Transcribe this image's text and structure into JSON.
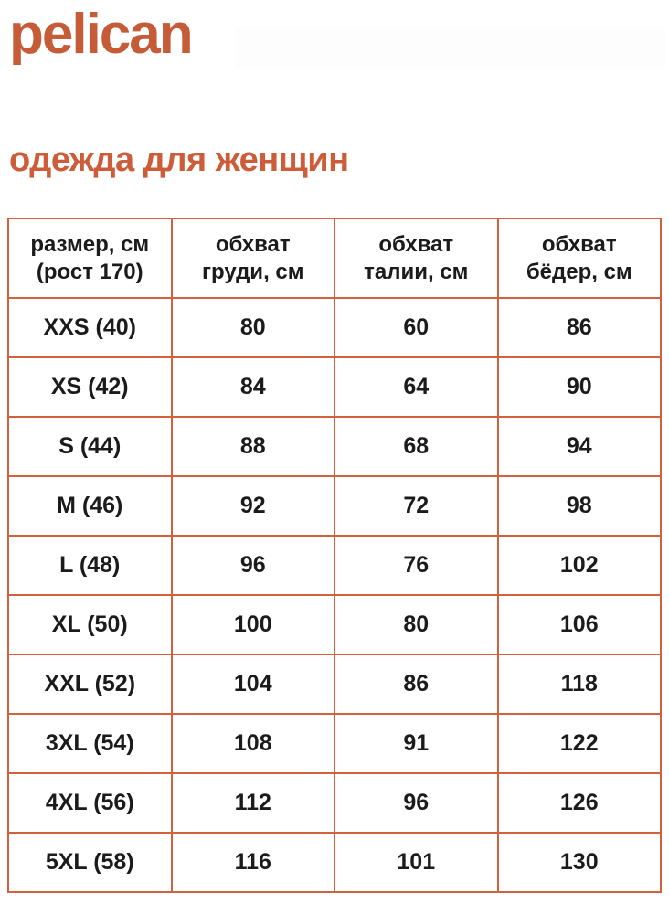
{
  "brand": {
    "logo_text": "pelican"
  },
  "page": {
    "title": "одежда для женщин"
  },
  "colors": {
    "accent_orange": "#c65b38",
    "title_orange": "#cd5c38",
    "table_border": "#d4613e",
    "cell_text": "#1b1b1b"
  },
  "size_table": {
    "headers": [
      "размер, см\n(рост 170)",
      "обхват\nгруди, см",
      "обхват\nталии, см",
      "обхват\nбёдер, см"
    ],
    "rows": [
      {
        "size": "XXS (40)",
        "chest": "80",
        "waist": "60",
        "hips": "86"
      },
      {
        "size": "XS (42)",
        "chest": "84",
        "waist": "64",
        "hips": "90"
      },
      {
        "size": "S (44)",
        "chest": "88",
        "waist": "68",
        "hips": "94"
      },
      {
        "size": "M (46)",
        "chest": "92",
        "waist": "72",
        "hips": "98"
      },
      {
        "size": "L (48)",
        "chest": "96",
        "waist": "76",
        "hips": "102"
      },
      {
        "size": "XL (50)",
        "chest": "100",
        "waist": "80",
        "hips": "106"
      },
      {
        "size": "XXL (52)",
        "chest": "104",
        "waist": "86",
        "hips": "118"
      },
      {
        "size": "3XL (54)",
        "chest": "108",
        "waist": "91",
        "hips": "122"
      },
      {
        "size": "4XL (56)",
        "chest": "112",
        "waist": "96",
        "hips": "126"
      },
      {
        "size": "5XL (58)",
        "chest": "116",
        "waist": "101",
        "hips": "130"
      }
    ]
  },
  "chart_data": {
    "type": "table",
    "title": "одежда для женщин",
    "columns": [
      "размер, см (рост 170)",
      "обхват груди, см",
      "обхват талии, см",
      "обхват бёдер, см"
    ],
    "rows": [
      [
        "XXS (40)",
        80,
        60,
        86
      ],
      [
        "XS (42)",
        84,
        64,
        90
      ],
      [
        "S (44)",
        88,
        68,
        94
      ],
      [
        "M (46)",
        92,
        72,
        98
      ],
      [
        "L (48)",
        96,
        76,
        102
      ],
      [
        "XL (50)",
        100,
        80,
        106
      ],
      [
        "XXL (52)",
        104,
        86,
        118
      ],
      [
        "3XL (54)",
        108,
        91,
        122
      ],
      [
        "4XL (56)",
        112,
        96,
        126
      ],
      [
        "5XL (58)",
        116,
        101,
        130
      ]
    ]
  }
}
